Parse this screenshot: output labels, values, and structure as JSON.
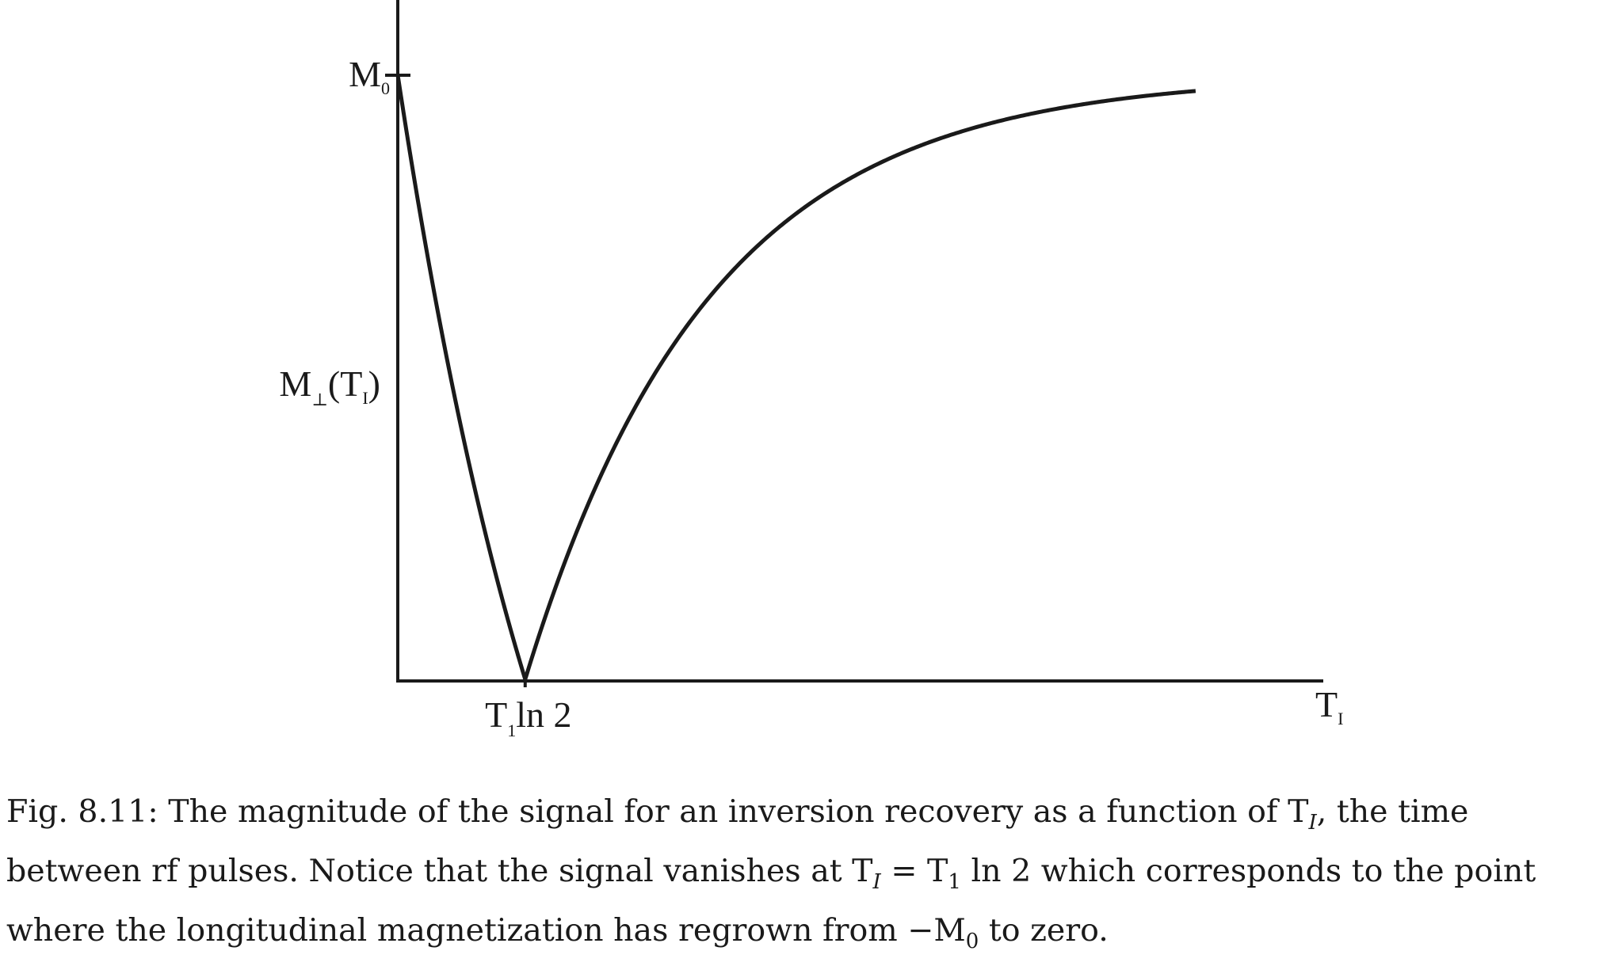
{
  "chart_data": {
    "type": "line",
    "title": "",
    "xlabel": "T_I",
    "ylabel": "M⊥(T_I)",
    "x_axis_label": {
      "main": "T",
      "sub": "I"
    },
    "y_axis_label": {
      "main": "M",
      "sub1": "⊥",
      "paren_open": "(T",
      "sub2": "I",
      "paren_close": ")"
    },
    "y_tick": {
      "main": "M",
      "sub": "0",
      "value": 1.0
    },
    "x_tick": {
      "main": "T",
      "sub": "1",
      "suffix": "ln 2",
      "value": 0.693
    },
    "xlim": [
      0,
      5.0
    ],
    "ylim": [
      0,
      1.0
    ],
    "function": "|1 - 2·exp(-T_I/T_1)|, T_1 = 1",
    "series": [
      {
        "name": "|M⊥(T_I)|",
        "x": [
          0,
          0.1,
          0.2,
          0.3,
          0.4,
          0.5,
          0.6,
          0.693,
          0.8,
          1.0,
          1.2,
          1.5,
          1.8,
          2.0,
          2.4,
          2.8,
          3.2,
          3.6,
          4.0,
          4.34
        ],
        "values": [
          1.0,
          0.81,
          0.637,
          0.482,
          0.341,
          0.213,
          0.098,
          0.0,
          0.101,
          0.264,
          0.398,
          0.554,
          0.669,
          0.729,
          0.818,
          0.878,
          0.918,
          0.945,
          0.963,
          0.974
        ]
      }
    ],
    "color": "#1a1a1a"
  },
  "caption": {
    "line1": "Fig. 8.11: The magnitude of the signal for an inversion recovery as a function of T",
    "line1_sub": "I",
    "line1_tail": ", the time",
    "line2_a": "between rf pulses. Notice that the signal vanishes at T",
    "line2_sub1": "I",
    "line2_b": " = T",
    "line2_sub2": "1",
    "line2_c": " ln 2 which corresponds to the point",
    "line3_a": "where the longitudinal magnetization has regrown from −M",
    "line3_sub": "0",
    "line3_b": " to zero."
  }
}
